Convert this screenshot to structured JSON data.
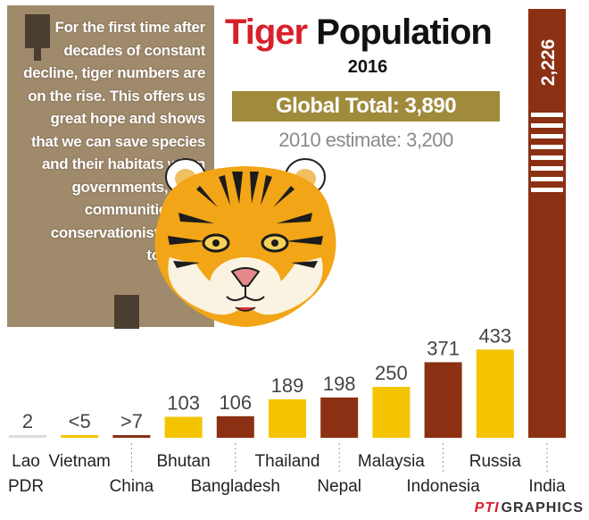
{
  "quote": {
    "text": "For the first time after decades of constant decline, tiger numbers are on the rise. This offers us great hope and shows that we can save species and their habitats when governments, local communities and conservationists work together"
  },
  "header": {
    "title_red": "Tiger",
    "title_black": "Population",
    "year": "2016",
    "global_total": "Global Total: 3,890",
    "estimate_2010": "2010 estimate: 3,200"
  },
  "credit": {
    "agency": "PTI",
    "label": "GRAPHICS"
  },
  "colors": {
    "bar_dark": "#8b3013",
    "bar_yellow": "#f5c400",
    "bar_gray": "#dcdcdc",
    "title_red": "#d8202a",
    "total_box": "#a08a3c",
    "quote_box": "#a08a6c"
  },
  "chart_data": {
    "type": "bar",
    "title": "Tiger Population",
    "categories": [
      "Lao PDR",
      "Vietnam",
      "China",
      "Bhutan",
      "Bangladesh",
      "Thailand",
      "Nepal",
      "Malaysia",
      "Indonesia",
      "Russia",
      "India"
    ],
    "values": [
      2,
      5,
      7,
      103,
      106,
      189,
      198,
      250,
      371,
      433,
      2226
    ],
    "value_labels": [
      "2",
      "<5",
      ">7",
      "103",
      "106",
      "189",
      "198",
      "250",
      "371",
      "433",
      "2,226"
    ],
    "bar_colors": [
      "gray",
      "yellow",
      "dark",
      "yellow",
      "dark",
      "yellow",
      "dark",
      "yellow",
      "dark",
      "yellow",
      "dark"
    ],
    "axis_break": "India"
  }
}
